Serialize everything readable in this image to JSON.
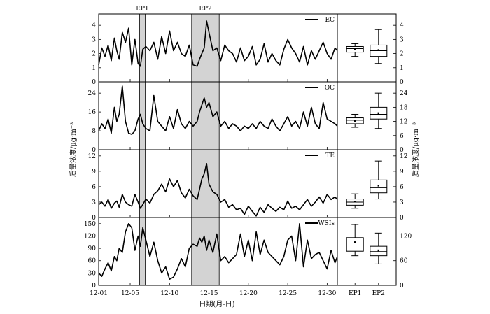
{
  "figure": {
    "left_ylabel": "质量浓度/μg·m⁻³",
    "right_ylabel": "质量浓度/μg·m⁻³",
    "xlabel": "日期(月-日)",
    "episodes": [
      {
        "label": "EP1",
        "start_day": 6.2,
        "end_day": 6.9
      },
      {
        "label": "EP2",
        "start_day": 12.8,
        "end_day": 16.3
      }
    ],
    "date_ticks": [
      {
        "label": "12-01",
        "day": 1
      },
      {
        "label": "12-05",
        "day": 5
      },
      {
        "label": "12-10",
        "day": 10
      },
      {
        "label": "12-15",
        "day": 15
      },
      {
        "label": "12-20",
        "day": 20
      },
      {
        "label": "12-25",
        "day": 25
      },
      {
        "label": "12-30",
        "day": 30
      }
    ],
    "box_categories": [
      "EP1",
      "EP2"
    ]
  },
  "chart_data": [
    {
      "type": "line",
      "name": "EC",
      "legend": "EC",
      "x_unit": "day of December",
      "xlim": [
        1,
        31.3
      ],
      "ylim": [
        0,
        4.8
      ],
      "yticks": [
        0,
        1,
        2,
        3,
        4
      ],
      "x": [
        1,
        1.4,
        1.8,
        2.2,
        2.6,
        3,
        3.3,
        3.6,
        4,
        4.4,
        4.8,
        5.2,
        5.6,
        6,
        6.3,
        6.6,
        7,
        7.5,
        8,
        8.5,
        9,
        9.5,
        10,
        10.5,
        11,
        11.5,
        12,
        12.5,
        13,
        13.5,
        13.8,
        14.1,
        14.4,
        14.7,
        15,
        15.5,
        16,
        16.5,
        17,
        17.5,
        18,
        18.5,
        19,
        19.5,
        20,
        20.5,
        21,
        21.5,
        22,
        22.5,
        23,
        23.5,
        24,
        24.5,
        25,
        25.5,
        26,
        26.5,
        27,
        27.5,
        28,
        28.5,
        29,
        29.5,
        30,
        30.5,
        31,
        31.3
      ],
      "y": [
        1.2,
        2.4,
        1.8,
        2.6,
        1.5,
        3.1,
        2.2,
        1.6,
        3.5,
        2.8,
        3.8,
        1.2,
        3.0,
        1.3,
        1.1,
        2.3,
        2.5,
        2.2,
        2.8,
        1.6,
        3.2,
        2.0,
        3.6,
        2.2,
        2.8,
        2.0,
        1.8,
        2.6,
        1.2,
        1.1,
        1.6,
        2.0,
        2.4,
        4.3,
        3.5,
        2.2,
        2.4,
        1.5,
        2.6,
        2.2,
        2.0,
        1.4,
        2.4,
        1.5,
        1.8,
        2.5,
        1.2,
        1.6,
        2.7,
        1.4,
        2.0,
        1.5,
        1.2,
        2.3,
        3.0,
        2.4,
        2.0,
        1.4,
        2.5,
        1.2,
        2.2,
        1.6,
        2.2,
        2.8,
        2.0,
        1.6,
        2.4,
        2.2
      ]
    },
    {
      "type": "line",
      "name": "OC",
      "legend": "OC",
      "x_unit": "day of December",
      "xlim": [
        1,
        31.3
      ],
      "ylim": [
        0,
        28.8
      ],
      "yticks": [
        0,
        8,
        16,
        24
      ],
      "x": [
        1,
        1.4,
        1.8,
        2.2,
        2.6,
        3,
        3.3,
        3.6,
        4,
        4.4,
        4.8,
        5.2,
        5.6,
        6,
        6.3,
        6.6,
        7,
        7.5,
        8,
        8.5,
        9,
        9.5,
        10,
        10.5,
        11,
        11.5,
        12,
        12.5,
        13,
        13.5,
        13.8,
        14.1,
        14.4,
        14.7,
        15,
        15.5,
        16,
        16.5,
        17,
        17.5,
        18,
        18.5,
        19,
        19.5,
        20,
        20.5,
        21,
        21.5,
        22,
        22.5,
        23,
        23.5,
        24,
        24.5,
        25,
        25.5,
        26,
        26.5,
        27,
        27.5,
        28,
        28.5,
        29,
        29.5,
        30,
        30.5,
        31,
        31.3
      ],
      "y": [
        8,
        11,
        9,
        13,
        7,
        18,
        12,
        15,
        27,
        12,
        7,
        6.5,
        8,
        13,
        15,
        11,
        9,
        8,
        23,
        12,
        10,
        8,
        14,
        9,
        17,
        11,
        9,
        12,
        10,
        12,
        16,
        19,
        22,
        18,
        20,
        14,
        16,
        10,
        12,
        9,
        11,
        10,
        8,
        10,
        9,
        11,
        9,
        12,
        10,
        9,
        13,
        10,
        8,
        11,
        14,
        10,
        12,
        9,
        16,
        10,
        18,
        11,
        9,
        20,
        13,
        12,
        11,
        10
      ]
    },
    {
      "type": "line",
      "name": "TE",
      "legend": "TE",
      "x_unit": "day of December",
      "xlim": [
        1,
        31.3
      ],
      "ylim": [
        0,
        13.2
      ],
      "yticks": [
        0,
        3,
        6,
        9,
        12
      ],
      "x": [
        1,
        1.4,
        1.8,
        2.2,
        2.6,
        3,
        3.3,
        3.6,
        4,
        4.4,
        4.8,
        5.2,
        5.6,
        6,
        6.3,
        6.6,
        7,
        7.5,
        8,
        8.5,
        9,
        9.5,
        10,
        10.5,
        11,
        11.5,
        12,
        12.5,
        13,
        13.5,
        13.8,
        14.1,
        14.4,
        14.7,
        15,
        15.5,
        16,
        16.5,
        17,
        17.5,
        18,
        18.5,
        19,
        19.5,
        20,
        20.5,
        21,
        21.5,
        22,
        22.5,
        23,
        23.5,
        24,
        24.5,
        25,
        25.5,
        26,
        26.5,
        27,
        27.5,
        28,
        28.5,
        29,
        29.5,
        30,
        30.5,
        31,
        31.3
      ],
      "y": [
        2.5,
        3.0,
        2.2,
        3.5,
        1.8,
        2.8,
        3.2,
        2.0,
        4.5,
        3.0,
        2.5,
        2.2,
        4.5,
        3.0,
        1.8,
        2.5,
        3.6,
        2.8,
        4.5,
        5.2,
        6.5,
        5.0,
        7.5,
        6.0,
        7.2,
        4.8,
        3.8,
        5.5,
        4.2,
        3.5,
        5.5,
        7.5,
        8.5,
        10.5,
        6.5,
        5.0,
        4.5,
        3.0,
        3.5,
        2.0,
        2.5,
        1.5,
        1.8,
        0.6,
        2.2,
        1.2,
        0.3,
        2.0,
        1.0,
        2.5,
        1.8,
        1.2,
        2.0,
        1.5,
        3.2,
        1.8,
        2.2,
        1.5,
        2.5,
        3.5,
        2.2,
        3.0,
        4.0,
        2.8,
        4.5,
        3.5,
        4.0,
        3.5
      ]
    },
    {
      "type": "line",
      "name": "WSIs",
      "legend": "WSIs",
      "x_unit": "day of December",
      "xlim": [
        1,
        31.3
      ],
      "ylim": [
        0,
        165
      ],
      "yticks": [
        0,
        30,
        60,
        90,
        120,
        150
      ],
      "x": [
        1,
        1.4,
        1.8,
        2.2,
        2.6,
        3,
        3.3,
        3.6,
        4,
        4.4,
        4.8,
        5.2,
        5.6,
        6,
        6.3,
        6.6,
        7,
        7.5,
        8,
        8.5,
        9,
        9.5,
        10,
        10.5,
        11,
        11.5,
        12,
        12.5,
        13,
        13.5,
        13.8,
        14.1,
        14.4,
        14.7,
        15,
        15.5,
        16,
        16.5,
        17,
        17.5,
        18,
        18.5,
        19,
        19.5,
        20,
        20.5,
        21,
        21.5,
        22,
        22.5,
        23,
        23.5,
        24,
        24.5,
        25,
        25.5,
        26,
        26.5,
        27,
        27.5,
        28,
        28.5,
        29,
        29.5,
        30,
        30.5,
        31,
        31.3
      ],
      "y": [
        30,
        22,
        40,
        55,
        35,
        70,
        60,
        90,
        80,
        130,
        150,
        140,
        85,
        120,
        95,
        140,
        110,
        70,
        105,
        60,
        30,
        45,
        15,
        20,
        40,
        65,
        45,
        90,
        100,
        95,
        115,
        105,
        120,
        85,
        110,
        80,
        125,
        60,
        70,
        55,
        65,
        75,
        125,
        70,
        110,
        60,
        130,
        75,
        110,
        80,
        70,
        60,
        50,
        70,
        110,
        120,
        60,
        150,
        45,
        110,
        65,
        75,
        80,
        60,
        40,
        85,
        55,
        70
      ]
    },
    {
      "type": "box",
      "name": "EC",
      "categories": [
        "EP1",
        "EP2"
      ],
      "ylim": [
        0,
        4.8
      ],
      "yticks": [
        0,
        1,
        2,
        3,
        4
      ],
      "boxes": [
        {
          "category": "EP1",
          "whisker_low": 1.8,
          "q1": 2.1,
          "median": 2.35,
          "mean": 2.3,
          "q3": 2.5,
          "whisker_high": 2.7
        },
        {
          "category": "EP2",
          "whisker_low": 1.3,
          "q1": 1.8,
          "median": 2.2,
          "mean": 2.25,
          "q3": 2.6,
          "whisker_high": 3.7
        }
      ]
    },
    {
      "type": "box",
      "name": "OC",
      "categories": [
        "EP1",
        "EP2"
      ],
      "ylim": [
        0,
        28.8
      ],
      "yticks": [
        0,
        6,
        12,
        18,
        24
      ],
      "boxes": [
        {
          "category": "EP1",
          "whisker_low": 9.5,
          "q1": 11,
          "median": 12.5,
          "mean": 12.2,
          "q3": 13.5,
          "whisker_high": 15
        },
        {
          "category": "EP2",
          "whisker_low": 9,
          "q1": 13,
          "median": 15,
          "mean": 15.5,
          "q3": 18,
          "whisker_high": 24
        }
      ]
    },
    {
      "type": "box",
      "name": "TE",
      "categories": [
        "EP1",
        "EP2"
      ],
      "ylim": [
        0,
        13.2
      ],
      "yticks": [
        0,
        3,
        6,
        9,
        12
      ],
      "boxes": [
        {
          "category": "EP1",
          "whisker_low": 1.8,
          "q1": 2.4,
          "median": 3.0,
          "mean": 3.1,
          "q3": 3.6,
          "whisker_high": 4.6
        },
        {
          "category": "EP2",
          "whisker_low": 3.6,
          "q1": 4.8,
          "median": 5.8,
          "mean": 6.2,
          "q3": 7.3,
          "whisker_high": 11
        }
      ]
    },
    {
      "type": "box",
      "name": "WSIs",
      "categories": [
        "EP1",
        "EP2"
      ],
      "ylim": [
        0,
        165
      ],
      "yticks": [
        0,
        60,
        120
      ],
      "boxes": [
        {
          "category": "EP1",
          "whisker_low": 72,
          "q1": 83,
          "median": 103,
          "mean": 105,
          "q3": 116,
          "whisker_high": 148
        },
        {
          "category": "EP2",
          "whisker_low": 52,
          "q1": 72,
          "median": 82,
          "mean": 85,
          "q3": 95,
          "whisker_high": 127
        }
      ]
    }
  ]
}
